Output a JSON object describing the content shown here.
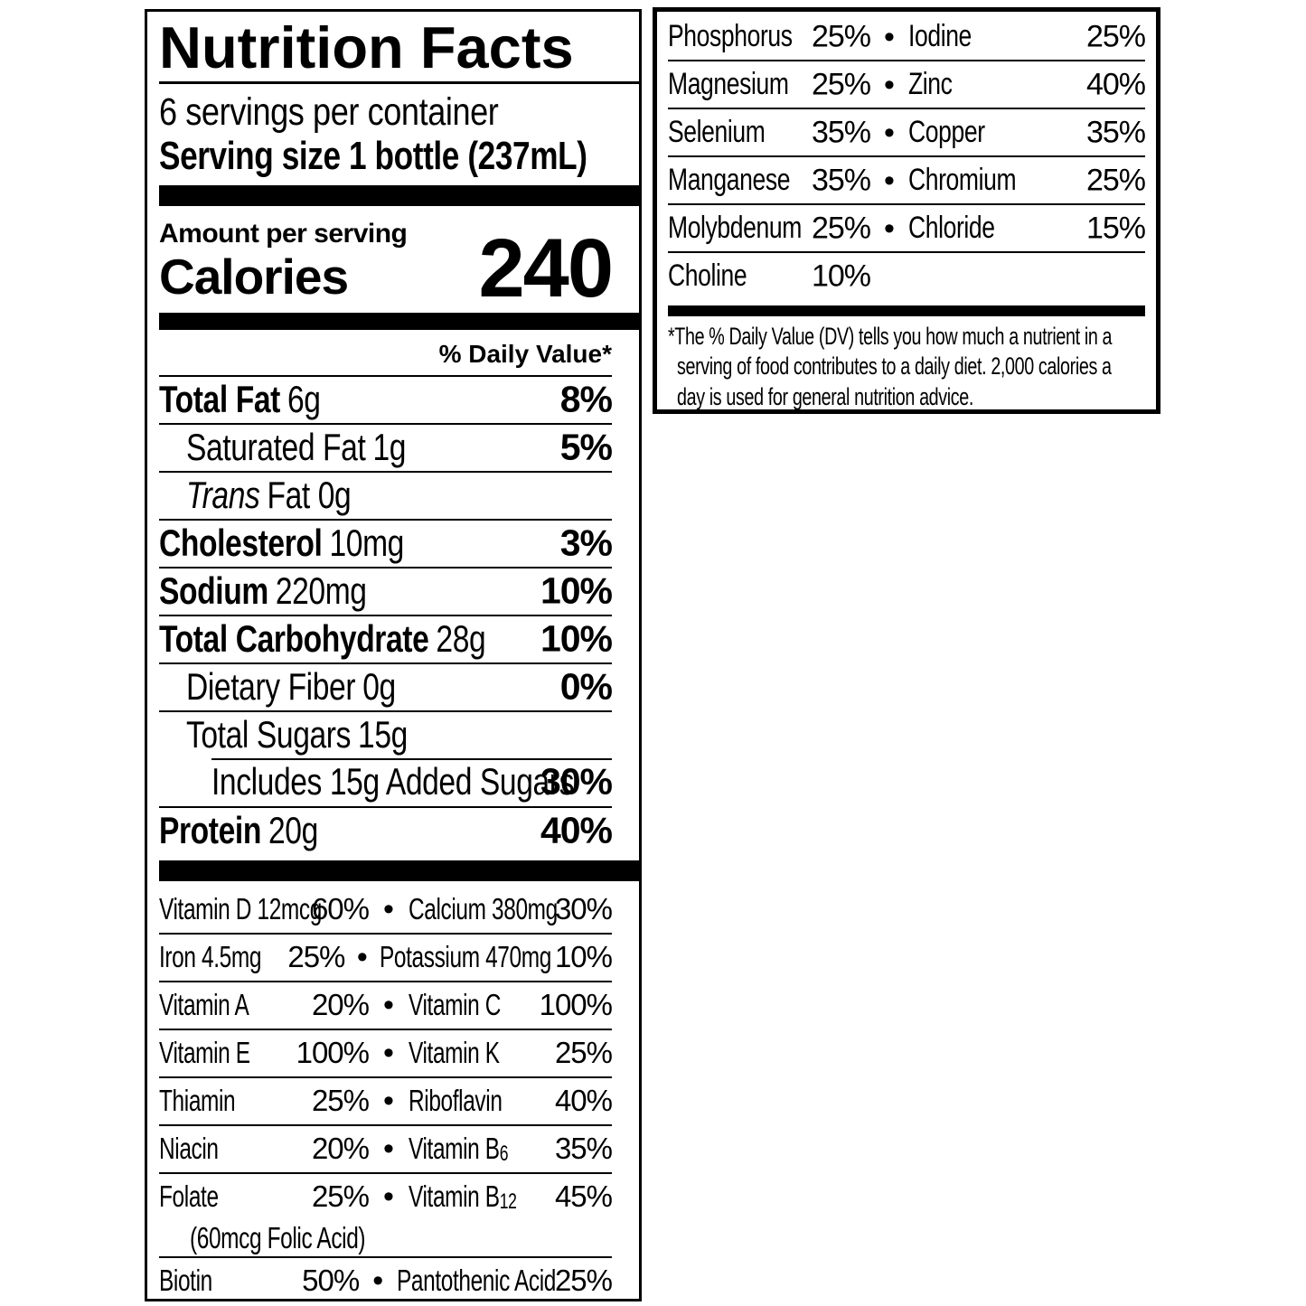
{
  "label": {
    "title": "Nutrition Facts",
    "servings_per_container": "6 servings per container",
    "serving_size": "Serving size 1 bottle (237mL)",
    "amount_per_serving": "Amount per serving",
    "calories_label": "Calories",
    "calories_value": "240",
    "daily_value_header": "% Daily Value*",
    "bullet": "•",
    "nutrients": [
      {
        "name": "Total Fat",
        "amount": "6g",
        "dv": "8%"
      },
      {
        "name": "Saturated Fat",
        "amount": "1g",
        "dv": "5%"
      },
      {
        "name": "Trans",
        "amount": "Fat 0g",
        "dv": ""
      },
      {
        "name": "Cholesterol",
        "amount": "10mg",
        "dv": "3%"
      },
      {
        "name": "Sodium",
        "amount": "220mg",
        "dv": "10%"
      },
      {
        "name": "Total Carbohydrate",
        "amount": "28g",
        "dv": "10%"
      },
      {
        "name": "Dietary Fiber",
        "amount": "0g",
        "dv": "0%"
      },
      {
        "name": "Total Sugars",
        "amount": "15g",
        "dv": ""
      },
      {
        "name": "Includes 15g Added Sugars",
        "amount": "",
        "dv": "30%"
      },
      {
        "name": "Protein",
        "amount": "20g",
        "dv": "40%"
      }
    ],
    "micronutrients": [
      {
        "left": "Vitamin D 12mcg",
        "left_dv": "60%",
        "right": "Calcium 380mg",
        "right_dv": "30%"
      },
      {
        "left": "Iron 4.5mg",
        "left_dv": "25%",
        "right": "Potassium 470mg",
        "right_dv": "10%"
      },
      {
        "left": "Vitamin A",
        "left_dv": "20%",
        "right": "Vitamin C",
        "right_dv": "100%"
      },
      {
        "left": "Vitamin E",
        "left_dv": "100%",
        "right": "Vitamin K",
        "right_dv": "25%"
      },
      {
        "left": "Thiamin",
        "left_dv": "25%",
        "right": "Riboflavin",
        "right_dv": "40%"
      },
      {
        "left": "Niacin",
        "left_dv": "20%",
        "right": "Vitamin B",
        "right_sub": "6",
        "right_dv": "35%"
      },
      {
        "left": "Folate",
        "left_dv": "25%",
        "left_note": "(60mcg Folic Acid)",
        "right": "Vitamin B",
        "right_sub": "12",
        "right_dv": "45%"
      },
      {
        "left": "Biotin",
        "left_dv": "50%",
        "right": "Pantothenic Acid",
        "right_dv": "25%"
      }
    ],
    "minerals": [
      {
        "left": "Phosphorus",
        "left_dv": "25%",
        "right": "Iodine",
        "right_dv": "25%"
      },
      {
        "left": "Magnesium",
        "left_dv": "25%",
        "right": "Zinc",
        "right_dv": "40%"
      },
      {
        "left": "Selenium",
        "left_dv": "35%",
        "right": "Copper",
        "right_dv": "35%"
      },
      {
        "left": "Manganese",
        "left_dv": "35%",
        "right": "Chromium",
        "right_dv": "25%"
      },
      {
        "left": "Molybdenum",
        "left_dv": "25%",
        "right": "Chloride",
        "right_dv": "15%"
      },
      {
        "left": "Choline",
        "left_dv": "10%"
      }
    ],
    "footnote_lines": [
      "*The % Daily Value (DV) tells you how much a nutrient in a",
      "serving of food contributes to a daily diet. 2,000 calories a",
      "day is used for general nutrition advice."
    ],
    "colors": {
      "ink": "#000000",
      "paper": "#ffffff"
    }
  }
}
